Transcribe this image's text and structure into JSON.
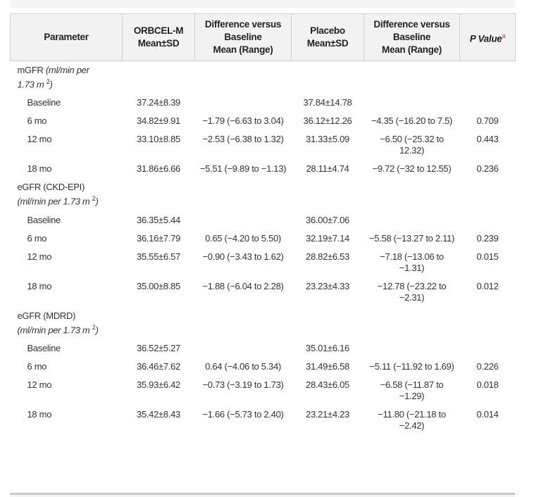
{
  "headers": [
    {
      "lines": [
        "Parameter"
      ]
    },
    {
      "lines": [
        "ORBCEL-M",
        "Mean±SD"
      ]
    },
    {
      "lines": [
        "Difference versus",
        "Baseline",
        "Mean (Range)"
      ]
    },
    {
      "lines": [
        "Placebo",
        "Mean±SD"
      ]
    },
    {
      "lines": [
        "Difference versus",
        "Baseline",
        "Mean (Range)"
      ]
    },
    {
      "lines": [
        "P Value"
      ],
      "sup": "a"
    }
  ],
  "sections": [
    {
      "name": "mGFR",
      "unit_line1": "(ml/min per",
      "unit_line2": "1.73 m",
      "unit_sup": "2",
      "unit_end": ")",
      "rows": [
        {
          "label": "Baseline",
          "orbcel": "37.24±8.39",
          "orbcel_diff": "",
          "placebo": "37.84±14.78",
          "placebo_diff": "",
          "p": ""
        },
        {
          "label": "6 mo",
          "orbcel": "34.82±9.91",
          "orbcel_diff": "−1.79 (−6.63 to 3.04)",
          "placebo": "36.12±12.26",
          "placebo_diff": "−4.35 (−16.20 to 7.5)",
          "p": "0.709"
        },
        {
          "label": "12 mo",
          "orbcel": "33.10±8.85",
          "orbcel_diff": "−2.53 (−6.38 to 1.32)",
          "placebo": "31.33±5.09",
          "placebo_diff": "−6.50 (−25.32 to 12.32)",
          "p": "0.443"
        },
        {
          "label": "18 mo",
          "orbcel": "31.86±6.66",
          "orbcel_diff": "−5.51 (−9.89 to −1.13)",
          "placebo": "28.11±4.74",
          "placebo_diff": "−9.72 (−32 to 12.55)",
          "p": "0.236"
        }
      ]
    },
    {
      "name": "eGFR (CKD-EPI)",
      "unit_line1": "",
      "unit_line2": "(ml/min per 1.73 m",
      "unit_sup": "2",
      "unit_end": ")",
      "rows": [
        {
          "label": "Baseline",
          "orbcel": "36.35±5.44",
          "orbcel_diff": "",
          "placebo": "36.00±7.06",
          "placebo_diff": "",
          "p": ""
        },
        {
          "label": "6 mo",
          "orbcel": "36.16±7.79",
          "orbcel_diff": "0.65 (−4.20 to 5.50)",
          "placebo": "32.19±7.14",
          "placebo_diff": "−5.58 (−13.27 to 2.11)",
          "p": "0.239"
        },
        {
          "label": "12 mo",
          "orbcel": "35.55±6.57",
          "orbcel_diff": "−0.90 (−3.43 to 1.62)",
          "placebo": "28.82±6.53",
          "placebo_diff": "−7.18 (−13.06 to −1.31)",
          "p": "0.015"
        },
        {
          "label": "18 mo",
          "orbcel": "35.00±8.85",
          "orbcel_diff": "−1.88 (−6.04 to 2.28)",
          "placebo": "23.23±4.33",
          "placebo_diff": "−12.78 (−23.22 to −2.31)",
          "p": "0.012"
        }
      ]
    },
    {
      "name": "eGFR (MDRD)",
      "unit_line1": "",
      "unit_line2": "(ml/min per 1.73 m",
      "unit_sup": "2",
      "unit_end": ")",
      "rows": [
        {
          "label": "Baseline",
          "orbcel": "36.52±5.27",
          "orbcel_diff": "",
          "placebo": "35.01±6.16",
          "placebo_diff": "",
          "p": ""
        },
        {
          "label": "6 mo",
          "orbcel": "36.46±7.62",
          "orbcel_diff": "0.64 (−4.06 to 5.34)",
          "placebo": "31.49±6.58",
          "placebo_diff": "−5.11 (−11.92 to 1.69)",
          "p": "0.226"
        },
        {
          "label": "12 mo",
          "orbcel": "35.93±6.42",
          "orbcel_diff": "−0.73 (−3.19 to 1.73)",
          "placebo": "28.43±6.05",
          "placebo_diff": "−6.58 (−11.87 to −1.29)",
          "p": "0.018"
        },
        {
          "label": "18 mo",
          "orbcel": "35.42±8.43",
          "orbcel_diff": "−1.66 (−5.73 to 2.40)",
          "placebo": "23.21±4.23",
          "placebo_diff": "−11.80 (−21.18 to −2.42)",
          "p": "0.014"
        }
      ]
    }
  ]
}
